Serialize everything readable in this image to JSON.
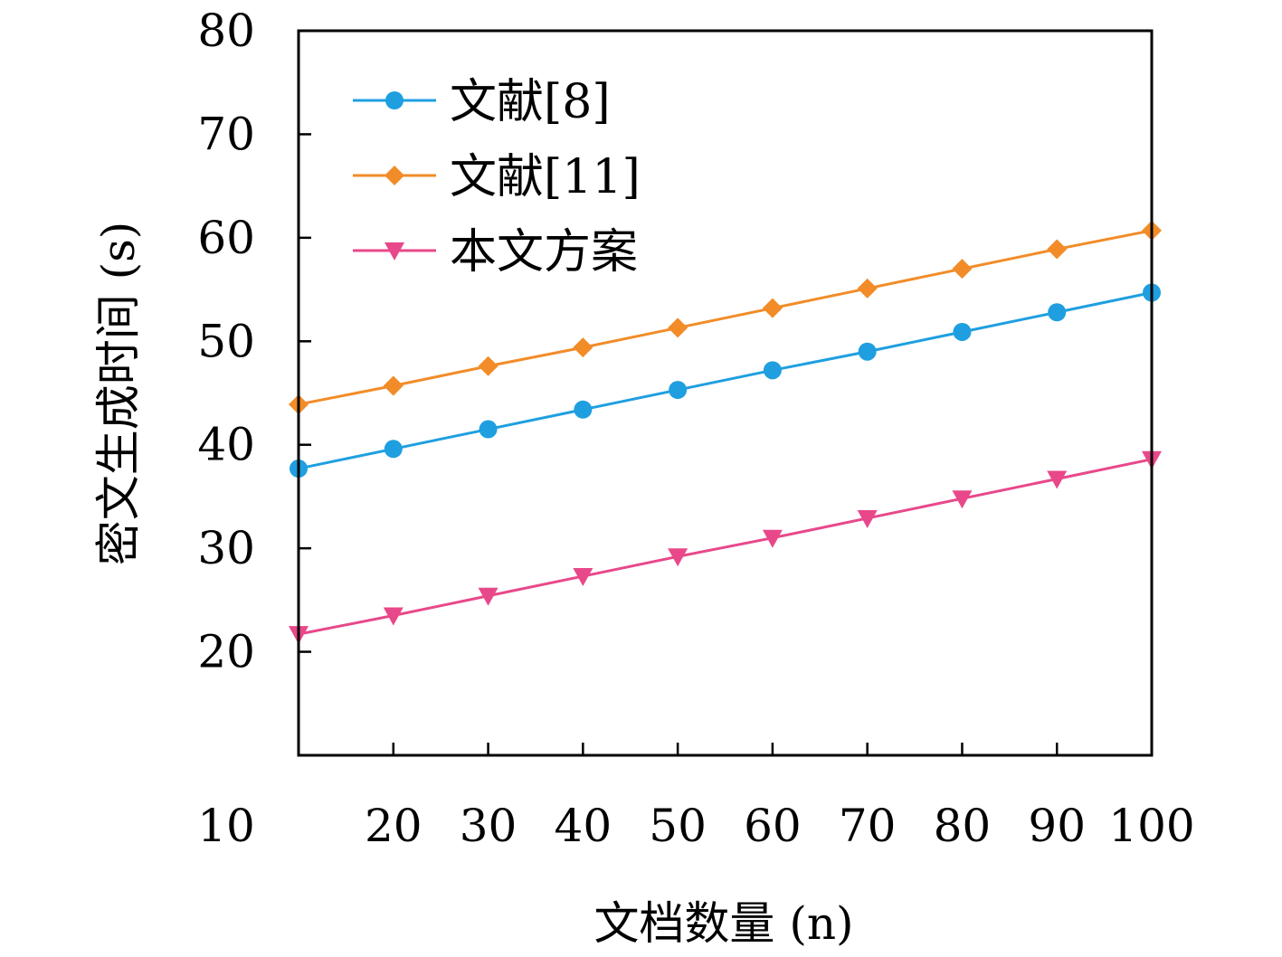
{
  "chart_data": {
    "type": "line",
    "xlabel": "文档数量 (n)",
    "ylabel": "密文生成时间 (s)",
    "x": [
      10,
      20,
      30,
      40,
      50,
      60,
      70,
      80,
      90,
      100
    ],
    "x_tick_labels": [
      "10",
      "20",
      "30",
      "40",
      "50",
      "60",
      "70",
      "80",
      "90",
      "100"
    ],
    "xlim": [
      10,
      100
    ],
    "ylim": [
      10,
      80
    ],
    "y_ticks": [
      20,
      30,
      40,
      50,
      60,
      70,
      80
    ],
    "grid": false,
    "legend_position": "top-left",
    "series": [
      {
        "name": "文献[8]",
        "color": "#1f9fe0",
        "marker": "circle",
        "values": [
          37.7,
          39.6,
          41.5,
          43.4,
          45.3,
          47.2,
          49.0,
          50.9,
          52.8,
          54.7
        ]
      },
      {
        "name": "文献[11]",
        "color": "#f28c28",
        "marker": "diamond",
        "values": [
          43.9,
          45.7,
          47.6,
          49.4,
          51.3,
          53.2,
          55.1,
          57.0,
          58.9,
          60.7
        ]
      },
      {
        "name": "本文方案",
        "color": "#e8488a",
        "marker": "triangle-down",
        "values": [
          21.7,
          23.5,
          25.4,
          27.3,
          29.2,
          31.0,
          32.9,
          34.8,
          36.7,
          38.6
        ]
      }
    ]
  }
}
